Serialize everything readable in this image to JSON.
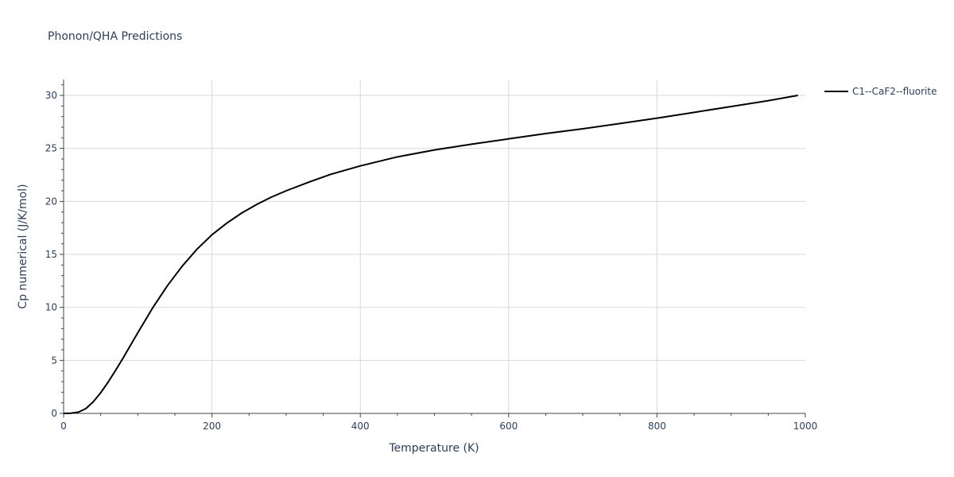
{
  "chart_data": {
    "type": "line",
    "title": "Phonon/QHA Predictions",
    "xlabel": "Temperature (K)",
    "ylabel": "Cp numerical (J/K/mol)",
    "xlim": [
      0,
      1000
    ],
    "ylim": [
      0,
      31.5
    ],
    "xticks": [
      0,
      200,
      400,
      600,
      800,
      1000
    ],
    "yticks": [
      0,
      5,
      10,
      15,
      20,
      25,
      30
    ],
    "grid": true,
    "legend_position": "top-right",
    "series": [
      {
        "name": "C1--CaF2--fluorite",
        "color": "#000000",
        "x": [
          0,
          10,
          20,
          30,
          40,
          50,
          60,
          70,
          80,
          90,
          100,
          120,
          140,
          160,
          180,
          200,
          220,
          240,
          260,
          280,
          300,
          330,
          360,
          400,
          450,
          500,
          550,
          600,
          650,
          700,
          750,
          800,
          850,
          900,
          950,
          990
        ],
        "y": [
          0,
          0.02,
          0.12,
          0.45,
          1.1,
          1.95,
          2.95,
          4.05,
          5.2,
          6.4,
          7.6,
          9.95,
          12.05,
          13.9,
          15.5,
          16.85,
          17.95,
          18.9,
          19.7,
          20.4,
          21.0,
          21.8,
          22.55,
          23.35,
          24.2,
          24.85,
          25.4,
          25.9,
          26.4,
          26.85,
          27.35,
          27.85,
          28.4,
          28.95,
          29.5,
          30.0
        ]
      }
    ]
  }
}
